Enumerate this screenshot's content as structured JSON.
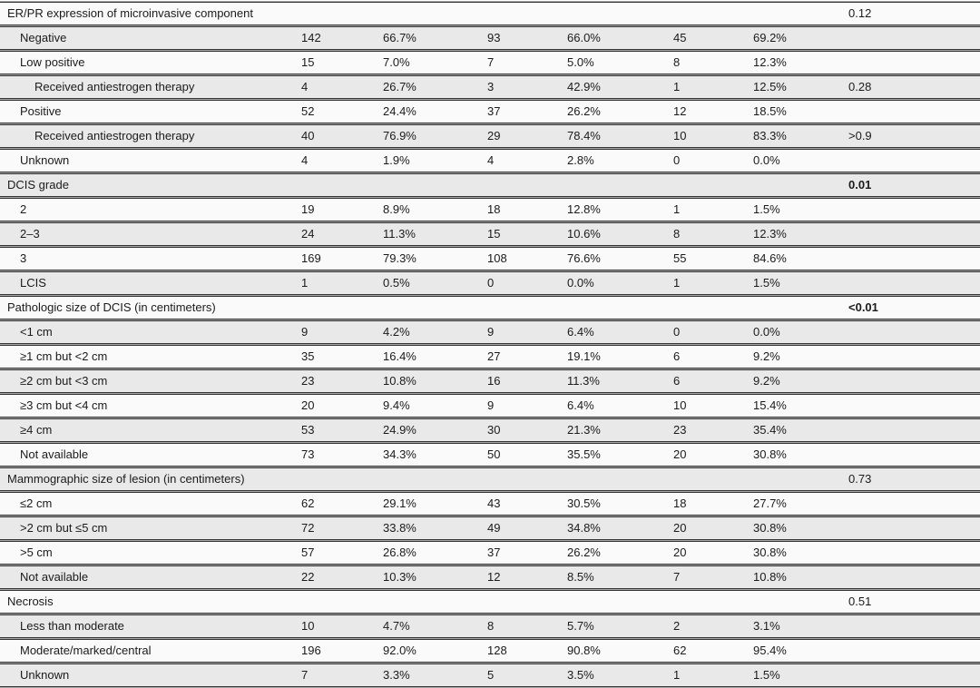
{
  "table": {
    "description": "Patient and tumor characteristics table with counts, percentages and p-values",
    "column_groups": [
      "label",
      "count-1",
      "percent-1",
      "count-2",
      "percent-2",
      "count-3",
      "percent-3",
      "p-value"
    ],
    "rows": [
      {
        "label": "ER/PR expression of microinvasive component",
        "indent": 0,
        "cells": [
          "",
          "",
          "",
          "",
          "",
          ""
        ],
        "p": "0.12",
        "p_bold": false
      },
      {
        "label": "Negative",
        "indent": 1,
        "cells": [
          "142",
          "66.7%",
          "93",
          "66.0%",
          "45",
          "69.2%"
        ],
        "p": "",
        "p_bold": false
      },
      {
        "label": "Low positive",
        "indent": 1,
        "cells": [
          "15",
          "7.0%",
          "7",
          "5.0%",
          "8",
          "12.3%"
        ],
        "p": "",
        "p_bold": false
      },
      {
        "label": "Received antiestrogen therapy",
        "indent": 2,
        "cells": [
          "4",
          "26.7%",
          "3",
          "42.9%",
          "1",
          "12.5%"
        ],
        "p": "0.28",
        "p_bold": false
      },
      {
        "label": "Positive",
        "indent": 1,
        "cells": [
          "52",
          "24.4%",
          "37",
          "26.2%",
          "12",
          "18.5%"
        ],
        "p": "",
        "p_bold": false
      },
      {
        "label": "Received antiestrogen therapy",
        "indent": 2,
        "cells": [
          "40",
          "76.9%",
          "29",
          "78.4%",
          "10",
          "83.3%"
        ],
        "p": ">0.9",
        "p_bold": false
      },
      {
        "label": "Unknown",
        "indent": 1,
        "cells": [
          "4",
          "1.9%",
          "4",
          "2.8%",
          "0",
          "0.0%"
        ],
        "p": "",
        "p_bold": false
      },
      {
        "label": "DCIS grade",
        "indent": 0,
        "cells": [
          "",
          "",
          "",
          "",
          "",
          ""
        ],
        "p": "0.01",
        "p_bold": true
      },
      {
        "label": "2",
        "indent": 1,
        "cells": [
          "19",
          "8.9%",
          "18",
          "12.8%",
          "1",
          "1.5%"
        ],
        "p": "",
        "p_bold": false
      },
      {
        "label": "2–3",
        "indent": 1,
        "cells": [
          "24",
          "11.3%",
          "15",
          "10.6%",
          "8",
          "12.3%"
        ],
        "p": "",
        "p_bold": false
      },
      {
        "label": "3",
        "indent": 1,
        "cells": [
          "169",
          "79.3%",
          "108",
          "76.6%",
          "55",
          "84.6%"
        ],
        "p": "",
        "p_bold": false
      },
      {
        "label": "LCIS",
        "indent": 1,
        "cells": [
          "1",
          "0.5%",
          "0",
          "0.0%",
          "1",
          "1.5%"
        ],
        "p": "",
        "p_bold": false
      },
      {
        "label": "Pathologic size of DCIS (in centimeters)",
        "indent": 0,
        "cells": [
          "",
          "",
          "",
          "",
          "",
          ""
        ],
        "p": "<0.01",
        "p_bold": true
      },
      {
        "label": "<1 cm",
        "indent": 1,
        "cells": [
          "9",
          "4.2%",
          "9",
          "6.4%",
          "0",
          "0.0%"
        ],
        "p": "",
        "p_bold": false
      },
      {
        "label": "≥1 cm but <2 cm",
        "indent": 1,
        "cells": [
          "35",
          "16.4%",
          "27",
          "19.1%",
          "6",
          "9.2%"
        ],
        "p": "",
        "p_bold": false
      },
      {
        "label": "≥2 cm but <3 cm",
        "indent": 1,
        "cells": [
          "23",
          "10.8%",
          "16",
          "11.3%",
          "6",
          "9.2%"
        ],
        "p": "",
        "p_bold": false
      },
      {
        "label": "≥3 cm but <4 cm",
        "indent": 1,
        "cells": [
          "20",
          "9.4%",
          "9",
          "6.4%",
          "10",
          "15.4%"
        ],
        "p": "",
        "p_bold": false
      },
      {
        "label": "≥4 cm",
        "indent": 1,
        "cells": [
          "53",
          "24.9%",
          "30",
          "21.3%",
          "23",
          "35.4%"
        ],
        "p": "",
        "p_bold": false
      },
      {
        "label": "Not available",
        "indent": 1,
        "cells": [
          "73",
          "34.3%",
          "50",
          "35.5%",
          "20",
          "30.8%"
        ],
        "p": "",
        "p_bold": false
      },
      {
        "label": "Mammographic size of lesion (in centimeters)",
        "indent": 0,
        "cells": [
          "",
          "",
          "",
          "",
          "",
          ""
        ],
        "p": "0.73",
        "p_bold": false
      },
      {
        "label": "≤2 cm",
        "indent": 1,
        "cells": [
          "62",
          "29.1%",
          "43",
          "30.5%",
          "18",
          "27.7%"
        ],
        "p": "",
        "p_bold": false
      },
      {
        "label": ">2 cm but ≤5 cm",
        "indent": 1,
        "cells": [
          "72",
          "33.8%",
          "49",
          "34.8%",
          "20",
          "30.8%"
        ],
        "p": "",
        "p_bold": false
      },
      {
        "label": ">5 cm",
        "indent": 1,
        "cells": [
          "57",
          "26.8%",
          "37",
          "26.2%",
          "20",
          "30.8%"
        ],
        "p": "",
        "p_bold": false
      },
      {
        "label": "Not available",
        "indent": 1,
        "cells": [
          "22",
          "10.3%",
          "12",
          "8.5%",
          "7",
          "10.8%"
        ],
        "p": "",
        "p_bold": false
      },
      {
        "label": "Necrosis",
        "indent": 0,
        "cells": [
          "",
          "",
          "",
          "",
          "",
          ""
        ],
        "p": "0.51",
        "p_bold": false
      },
      {
        "label": "Less than moderate",
        "indent": 1,
        "cells": [
          "10",
          "4.7%",
          "8",
          "5.7%",
          "2",
          "3.1%"
        ],
        "p": "",
        "p_bold": false
      },
      {
        "label": "Moderate/marked/central",
        "indent": 1,
        "cells": [
          "196",
          "92.0%",
          "128",
          "90.8%",
          "62",
          "95.4%"
        ],
        "p": "",
        "p_bold": false
      },
      {
        "label": "Unknown",
        "indent": 1,
        "cells": [
          "7",
          "3.3%",
          "5",
          "3.5%",
          "1",
          "1.5%"
        ],
        "p": "",
        "p_bold": false
      }
    ]
  },
  "colors": {
    "row_base": "#fafafa",
    "row_alt": "#e9e9e9",
    "rule_dark": "#343434",
    "rule_gap": "#a8a8a8",
    "text": "#1b1b1b"
  }
}
